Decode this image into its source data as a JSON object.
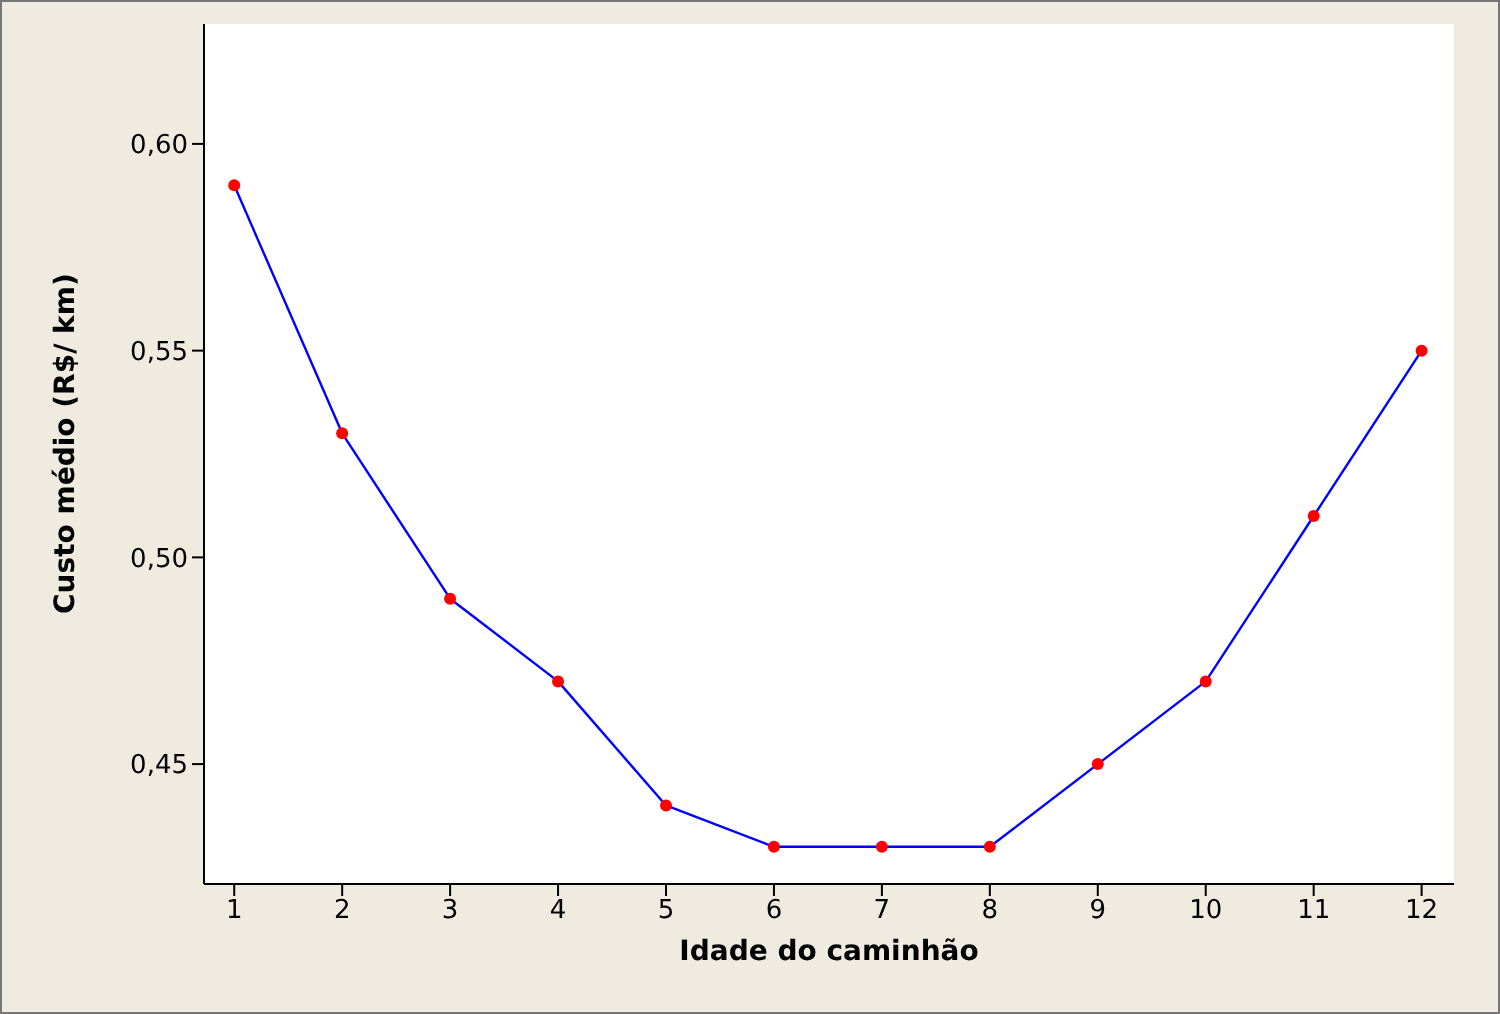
{
  "chart_data": {
    "type": "line",
    "xlabel": "Idade do caminhão",
    "ylabel": "Custo médio (R$/ km)",
    "x": [
      1,
      2,
      3,
      4,
      5,
      6,
      7,
      8,
      9,
      10,
      11,
      12
    ],
    "series": [
      {
        "color": "#0000ff",
        "colors": [
          "#ff0000",
          "#ff0000",
          "#ff0000",
          "#ff0000",
          "#ff0000",
          "#ff0000",
          "#ff0000",
          "#ff0000",
          "#ff0000",
          "#ff0000",
          "#ff0000",
          "#ff0000"
        ],
        "values": [
          0.59,
          0.53,
          0.49,
          0.47,
          0.44,
          0.43,
          0.43,
          0.43,
          0.45,
          0.47,
          0.51,
          0.55
        ]
      }
    ],
    "xlim": [
      0.72,
      12.3
    ],
    "xticks": [
      1,
      2,
      3,
      4,
      5,
      6,
      7,
      8,
      9,
      10,
      11,
      12
    ],
    "ylim": [
      0.421,
      0.629
    ],
    "yticks": [
      {
        "value": 0.45,
        "label": "0,45"
      },
      {
        "value": 0.5,
        "label": "0,50"
      },
      {
        "value": 0.55,
        "label": "0,55"
      },
      {
        "value": 0.6,
        "label": "0,60"
      }
    ],
    "grid": false,
    "marker": "circle",
    "line_style": "solid"
  }
}
